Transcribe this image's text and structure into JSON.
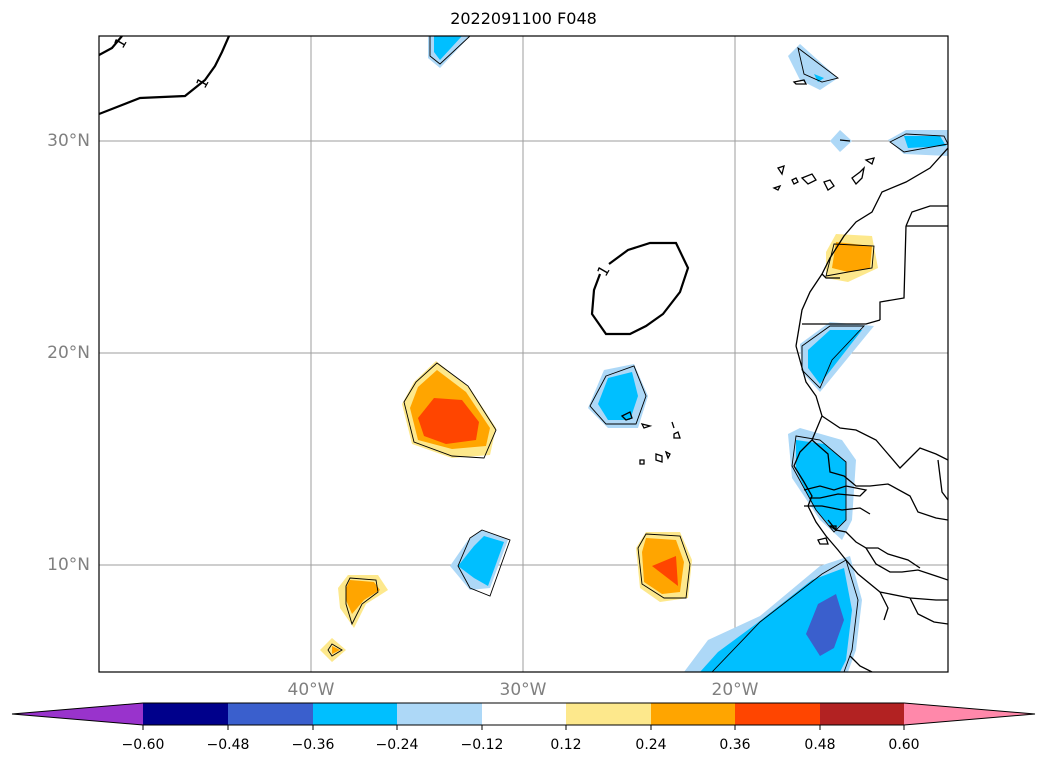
{
  "title": "2022091100 F048",
  "map": {
    "projection": "PlateCarree",
    "extent": {
      "lon_min": -50,
      "lon_max": -10,
      "lat_min": 5,
      "lat_max": 35
    },
    "gridlines": true,
    "latitude_labels": [
      "30°N",
      "20°N",
      "10°N"
    ],
    "longitude_labels": [
      "40°W",
      "30°W",
      "20°W"
    ],
    "contour_label": "1"
  },
  "colorbar": {
    "ticks": [
      "−0.60",
      "−0.48",
      "−0.36",
      "−0.24",
      "−0.12",
      "0.12",
      "0.24",
      "0.36",
      "0.48",
      "0.60"
    ],
    "colors": [
      "#9933cc",
      "#00008b",
      "#3a5fcd",
      "#00bfff",
      "#add8f7",
      "#ffffff",
      "#fde88c",
      "#ffa500",
      "#ff4500",
      "#b22222",
      "#ff88aa"
    ],
    "extend": "both"
  }
}
